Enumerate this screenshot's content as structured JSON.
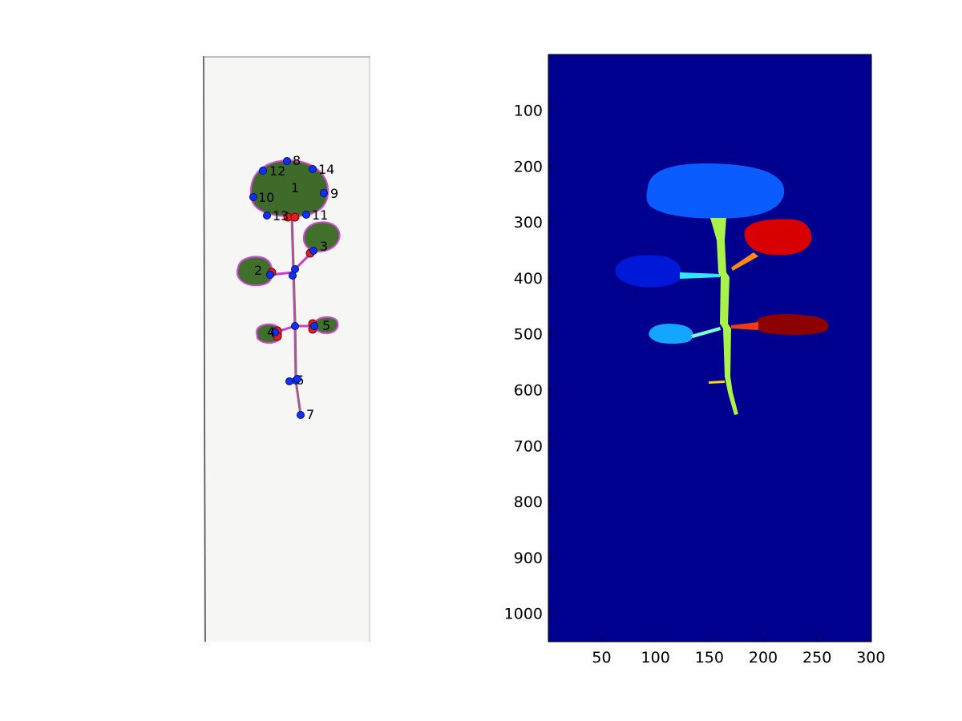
{
  "left_panel": {
    "keypoints": [
      {
        "label": "1",
        "x": 110,
        "y": 170
      },
      {
        "label": "2",
        "x": 84,
        "y": 273
      },
      {
        "label": "3",
        "x": 138,
        "y": 243
      },
      {
        "label": "4",
        "x": 90,
        "y": 345
      },
      {
        "label": "5",
        "x": 139,
        "y": 337
      },
      {
        "label": "6",
        "x": 116,
        "y": 405
      },
      {
        "label": "7",
        "x": 122,
        "y": 448
      },
      {
        "label": "8",
        "x": 105,
        "y": 131
      },
      {
        "label": "9",
        "x": 151,
        "y": 171
      },
      {
        "label": "10",
        "x": 63,
        "y": 176
      },
      {
        "label": "11",
        "x": 129,
        "y": 198
      },
      {
        "label": "12",
        "x": 75,
        "y": 143
      },
      {
        "label": "13",
        "x": 80,
        "y": 199
      },
      {
        "label": "14",
        "x": 137,
        "y": 141
      }
    ]
  },
  "right_panel": {
    "type": "heatmap",
    "background_color": "#00008f",
    "xlim": [
      1,
      300
    ],
    "ylim": [
      1,
      1050
    ],
    "x_ticks": [
      "50",
      "100",
      "150",
      "200",
      "250",
      "300"
    ],
    "y_ticks": [
      "100",
      "200",
      "300",
      "400",
      "500",
      "600",
      "700",
      "800",
      "900",
      "1000"
    ],
    "segment_colors": {
      "top_leaf": "#0a5cff",
      "stem": "#a8f24a",
      "upper_right_leaf": "#d80000",
      "upper_right_petiole": "#ff8a1a",
      "upper_left_leaf": "#0018d8",
      "upper_left_petiole": "#33e6ff",
      "lower_left_leaf": "#12a6ff",
      "lower_left_petiole": "#7affd0",
      "lower_right_leaf": "#8c0000",
      "lower_right_petiole": "#f03a10",
      "bud": "#ffd21a"
    }
  }
}
